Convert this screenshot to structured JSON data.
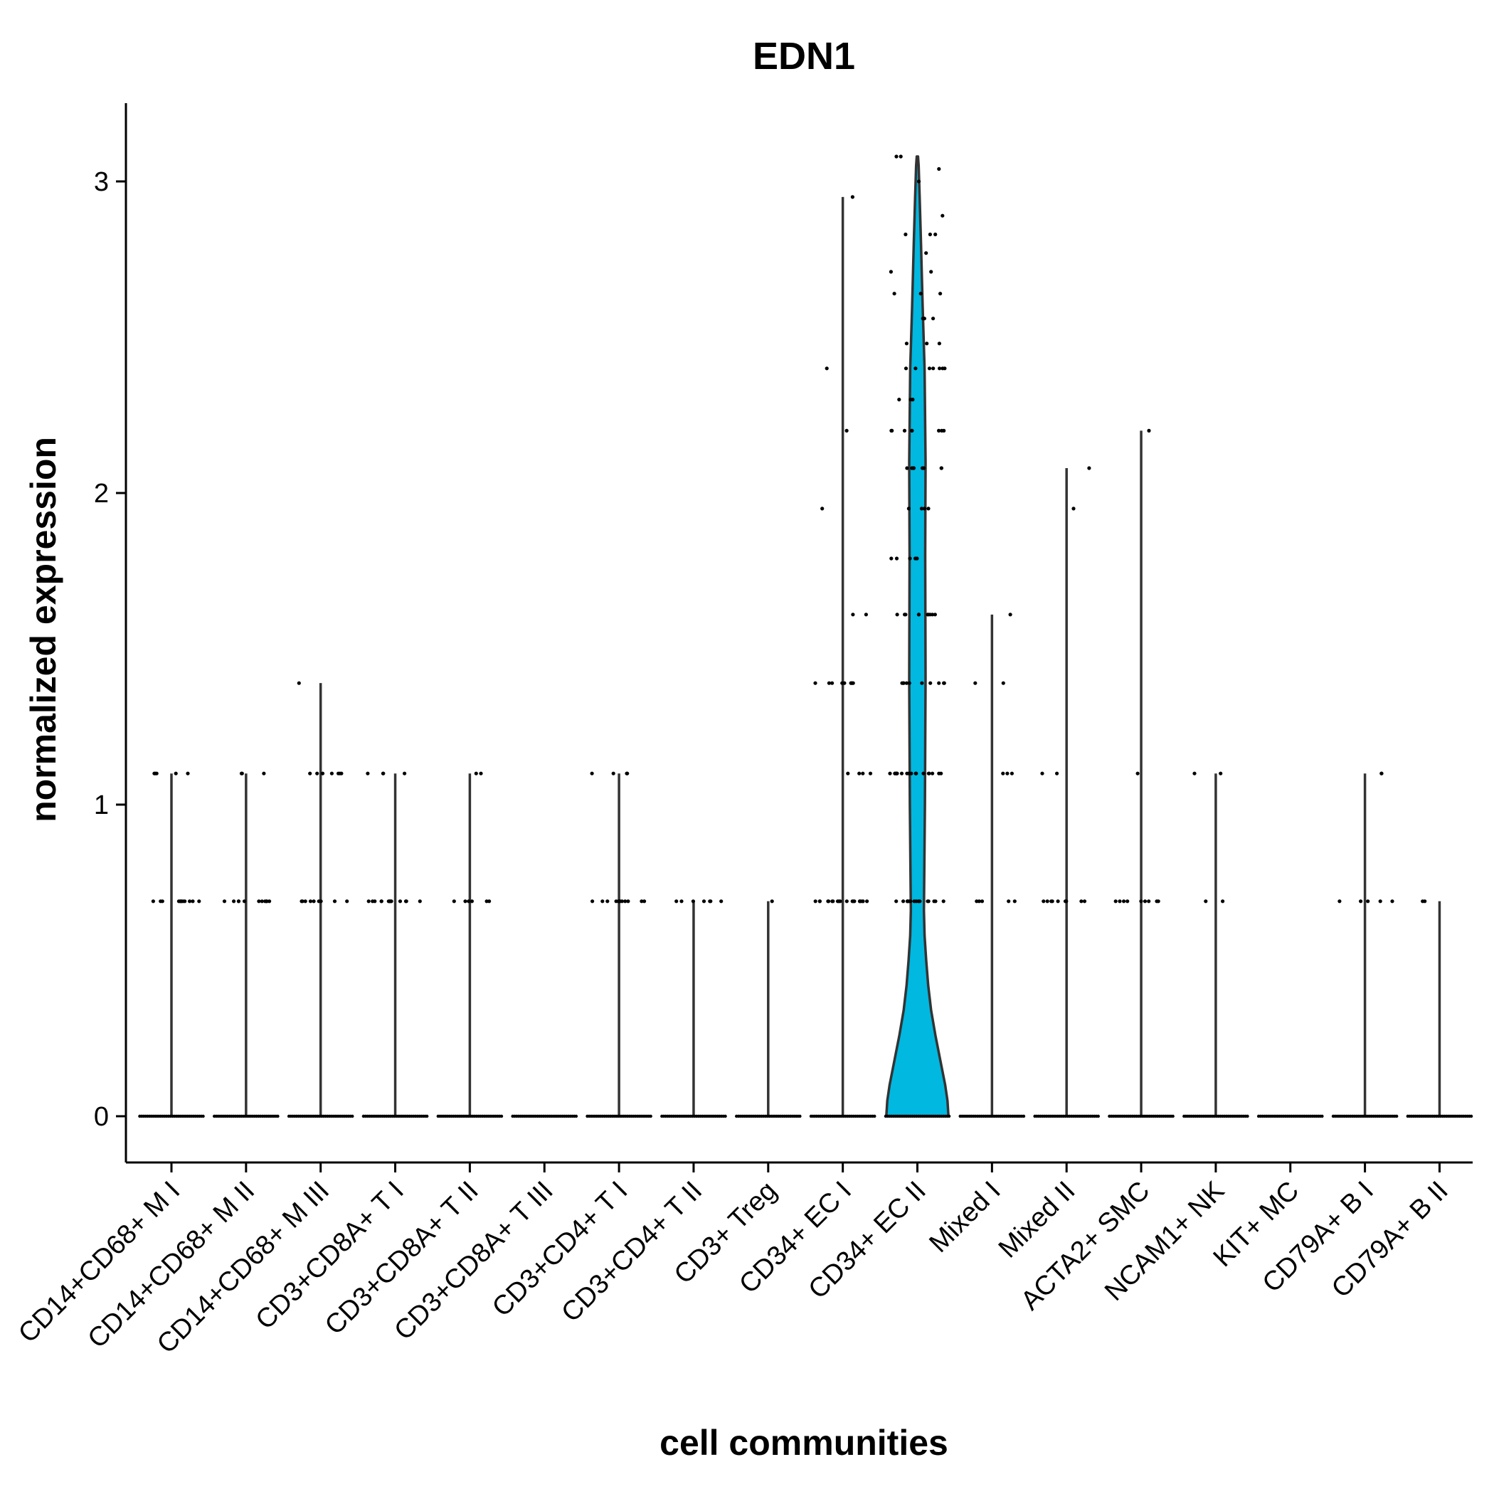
{
  "chart_data": {
    "type": "violin",
    "title": "EDN1",
    "xlabel": "cell communities",
    "ylabel": "normalized expression",
    "ylim": [
      -0.15,
      3.25
    ],
    "yticks": [
      0,
      1,
      2,
      3
    ],
    "grid": false,
    "legend": "none",
    "fill_color": "#00B8E0",
    "categories": [
      "CD14+CD68+ M I",
      "CD14+CD68+ M II",
      "CD14+CD68+ M III",
      "CD3+CD8A+ T I",
      "CD3+CD8A+ T II",
      "CD3+CD8A+ T III",
      "CD3+CD4+ T I",
      "CD3+CD4+ T II",
      "CD3+ Treg",
      "CD34+ EC I",
      "CD34+ EC II",
      "Mixed I",
      "Mixed II",
      "ACTA2+ SMC",
      "NCAM1+ NK",
      "KIT+ MC",
      "CD79A+ B I",
      "CD79A+ B II"
    ],
    "max_values": [
      1.1,
      1.1,
      1.39,
      1.1,
      1.1,
      0,
      1.1,
      0.69,
      0.69,
      2.95,
      3.08,
      1.61,
      2.08,
      2.2,
      1.1,
      0,
      1.1,
      0.69
    ],
    "nonzero_points": [
      [
        0.69,
        0.69,
        0.69,
        0.69,
        0.69,
        0.69,
        0.69,
        0.69,
        0.69,
        0.69,
        0.69,
        0.69,
        1.1,
        1.1,
        1.1,
        1.1,
        1.1
      ],
      [
        0.69,
        0.69,
        0.69,
        0.69,
        0.69,
        0.69,
        0.69,
        0.69,
        0.69,
        0.69,
        0.69,
        1.1,
        1.1,
        1.1
      ],
      [
        0.69,
        0.69,
        0.69,
        0.69,
        0.69,
        0.69,
        0.69,
        0.69,
        0.69,
        1.1,
        1.1,
        1.1,
        1.1,
        1.1,
        1.1,
        1.1,
        1.39
      ],
      [
        0.69,
        0.69,
        0.69,
        0.69,
        0.69,
        0.69,
        0.69,
        0.69,
        0.69,
        0.69,
        0.69,
        0.69,
        0.69,
        0.69,
        1.1,
        1.1,
        1.1,
        1.1
      ],
      [
        0.69,
        0.69,
        0.69,
        0.69,
        0.69,
        0.69,
        1.1,
        1.1
      ],
      [],
      [
        0.69,
        0.69,
        0.69,
        0.69,
        0.69,
        0.69,
        0.69,
        0.69,
        0.69,
        0.69,
        0.69,
        0.69,
        1.1,
        1.1,
        1.1,
        1.1
      ],
      [
        0.69,
        0.69,
        0.69,
        0.69,
        0.69,
        0.69,
        0.69
      ],
      [
        0.69
      ],
      [
        0.69,
        0.69,
        0.69,
        0.69,
        0.69,
        0.69,
        0.69,
        0.69,
        0.69,
        0.69,
        0.69,
        0.69,
        0.69,
        0.69,
        0.69,
        0.69,
        0.69,
        0.69,
        0.69,
        0.69,
        1.1,
        1.1,
        1.1,
        1.1,
        1.39,
        1.39,
        1.39,
        1.39,
        1.39,
        1.39,
        1.39,
        1.39,
        1.39,
        1.61,
        1.61,
        1.95,
        2.2,
        2.4,
        2.95
      ],
      [
        0.69,
        0.69,
        0.69,
        0.69,
        0.69,
        0.69,
        0.69,
        0.69,
        0.69,
        0.69,
        0.69,
        0.69,
        0.69,
        0.69,
        0.69,
        0.69,
        1.1,
        1.1,
        1.1,
        1.1,
        1.1,
        1.1,
        1.1,
        1.1,
        1.1,
        1.1,
        1.1,
        1.1,
        1.1,
        1.1,
        1.1,
        1.1,
        1.1,
        1.1,
        1.1,
        1.1,
        1.39,
        1.39,
        1.39,
        1.39,
        1.39,
        1.39,
        1.39,
        1.39,
        1.39,
        1.39,
        1.61,
        1.61,
        1.61,
        1.61,
        1.61,
        1.61,
        1.61,
        1.61,
        1.61,
        1.61,
        1.79,
        1.79,
        1.79,
        1.79,
        1.79,
        1.95,
        1.95,
        1.95,
        1.95,
        2.08,
        2.08,
        2.08,
        2.08,
        2.08,
        2.08,
        2.08,
        2.08,
        2.2,
        2.2,
        2.2,
        2.2,
        2.2,
        2.2,
        2.2,
        2.2,
        2.3,
        2.3,
        2.3,
        2.4,
        2.4,
        2.4,
        2.4,
        2.4,
        2.4,
        2.4,
        2.48,
        2.48,
        2.48,
        2.56,
        2.56,
        2.56,
        2.64,
        2.64,
        2.64,
        2.71,
        2.71,
        2.77,
        2.83,
        2.83,
        2.83,
        2.89,
        3.0,
        3.04,
        3.08,
        3.08
      ],
      [
        0.69,
        0.69,
        0.69,
        0.69,
        0.69,
        1.1,
        1.1,
        1.1,
        1.39,
        1.39,
        1.61
      ],
      [
        0.69,
        0.69,
        0.69,
        0.69,
        0.69,
        0.69,
        0.69,
        0.69,
        0.69,
        1.1,
        1.1,
        1.95,
        2.08
      ],
      [
        0.69,
        0.69,
        0.69,
        0.69,
        0.69,
        0.69,
        0.69,
        0.69,
        0.69,
        1.1,
        2.2
      ],
      [
        0.69,
        0.69,
        1.1,
        1.1
      ],
      [],
      [
        0.69,
        0.69,
        0.69,
        0.69,
        0.69,
        1.1,
        1.1
      ],
      [
        0.69,
        0.69
      ]
    ]
  }
}
